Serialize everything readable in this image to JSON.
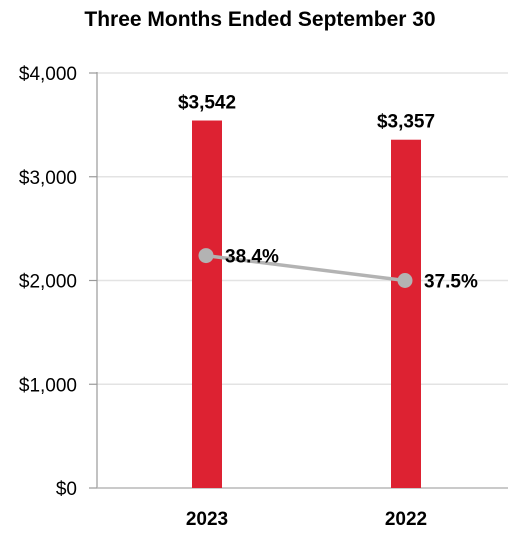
{
  "chart_data": {
    "type": "bar",
    "title": "Three Months Ended September 30",
    "categories": [
      "2023",
      "2022"
    ],
    "series": [
      {
        "type": "bar",
        "values": [
          3542,
          3357
        ],
        "data_labels": [
          "$3,542",
          "$3,357"
        ],
        "color": "#dd2232"
      },
      {
        "type": "line",
        "values": [
          38.4,
          37.5
        ],
        "data_labels": [
          "38.4%",
          "37.5%"
        ],
        "color": "#b3b3b3"
      }
    ],
    "y_ticks": [
      "$0",
      "$1,000",
      "$2,000",
      "$3,000",
      "$4,000"
    ],
    "ylim": [
      0,
      4000
    ],
    "xlabel": "",
    "ylabel": "",
    "grid": true,
    "legend": "none"
  }
}
